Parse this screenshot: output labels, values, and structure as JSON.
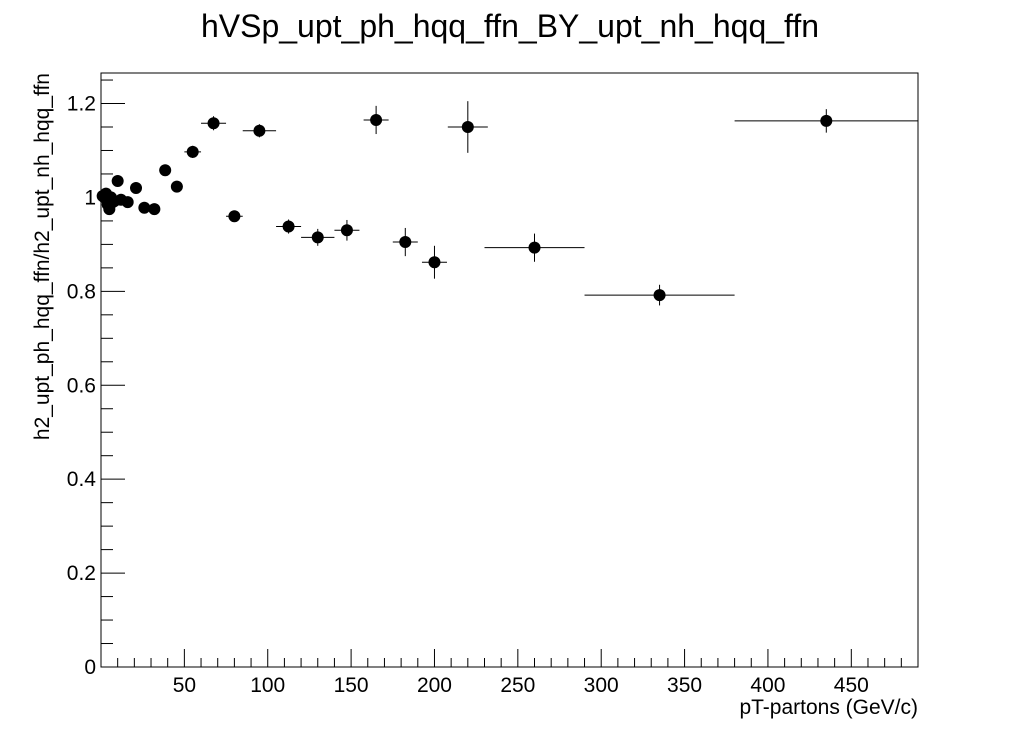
{
  "chart_data": {
    "type": "scatter",
    "title": "hVSp_upt_ph_hqq_ffn_BY_upt_nh_hqq_ffn",
    "xlabel": "pT-partons (GeV/c)",
    "ylabel": "h2_upt_ph_hqq_ffn/h2_upt_nh_hqq_ffn",
    "xlim": [
      0,
      490
    ],
    "ylim": [
      0,
      1.265
    ],
    "x_ticks": [
      50,
      100,
      150,
      200,
      250,
      300,
      350,
      400,
      450
    ],
    "y_ticks": [
      0,
      0.2,
      0.4,
      0.6,
      0.8,
      1,
      1.2
    ],
    "x_tick_labels": [
      "50",
      "100",
      "150",
      "200",
      "250",
      "300",
      "350",
      "400",
      "450"
    ],
    "y_tick_labels": [
      "0",
      "0.2",
      "0.4",
      "0.6",
      "0.8",
      "1",
      "1.2"
    ],
    "grid": false,
    "legend": "none",
    "marker_color": "#000000",
    "points": [
      {
        "x": 1,
        "y": 1.003,
        "xerr": 0.5,
        "yerr": 0.005
      },
      {
        "x": 2,
        "y": 1.0,
        "xerr": 0.5,
        "yerr": 0.005
      },
      {
        "x": 3,
        "y": 1.008,
        "xerr": 0.5,
        "yerr": 0.005
      },
      {
        "x": 4,
        "y": 0.985,
        "xerr": 0.5,
        "yerr": 0.006
      },
      {
        "x": 5,
        "y": 0.975,
        "xerr": 0.5,
        "yerr": 0.006
      },
      {
        "x": 6,
        "y": 1.0,
        "xerr": 0.5,
        "yerr": 0.006
      },
      {
        "x": 7,
        "y": 0.99,
        "xerr": 0.5,
        "yerr": 0.007
      },
      {
        "x": 8,
        "y": 0.992,
        "xerr": 0.5,
        "yerr": 0.007
      },
      {
        "x": 10,
        "y": 1.035,
        "xerr": 1,
        "yerr": 0.008
      },
      {
        "x": 12,
        "y": 0.995,
        "xerr": 1,
        "yerr": 0.008
      },
      {
        "x": 16,
        "y": 0.99,
        "xerr": 2,
        "yerr": 0.009
      },
      {
        "x": 21,
        "y": 1.02,
        "xerr": 2.5,
        "yerr": 0.01
      },
      {
        "x": 26,
        "y": 0.978,
        "xerr": 2.5,
        "yerr": 0.01
      },
      {
        "x": 32,
        "y": 0.975,
        "xerr": 3,
        "yerr": 0.011
      },
      {
        "x": 38.5,
        "y": 1.058,
        "xerr": 3.5,
        "yerr": 0.012
      },
      {
        "x": 45.5,
        "y": 1.023,
        "xerr": 3.5,
        "yerr": 0.012
      },
      {
        "x": 55,
        "y": 1.097,
        "xerr": 5,
        "yerr": 0.013
      },
      {
        "x": 67.5,
        "y": 1.158,
        "xerr": 7.5,
        "yerr": 0.015
      },
      {
        "x": 80,
        "y": 0.96,
        "xerr": 5,
        "yerr": 0.012
      },
      {
        "x": 95,
        "y": 1.142,
        "xerr": 10,
        "yerr": 0.014
      },
      {
        "x": 112.5,
        "y": 0.938,
        "xerr": 7.5,
        "yerr": 0.015
      },
      {
        "x": 130,
        "y": 0.915,
        "xerr": 10,
        "yerr": 0.018
      },
      {
        "x": 147.5,
        "y": 0.93,
        "xerr": 7.5,
        "yerr": 0.022
      },
      {
        "x": 165,
        "y": 1.165,
        "xerr": 7.5,
        "yerr": 0.03
      },
      {
        "x": 182.5,
        "y": 0.905,
        "xerr": 7.5,
        "yerr": 0.03
      },
      {
        "x": 200,
        "y": 0.862,
        "xerr": 7.5,
        "yerr": 0.035
      },
      {
        "x": 220,
        "y": 1.15,
        "xerr": 12,
        "yerr": 0.055
      },
      {
        "x": 260,
        "y": 0.893,
        "xerr": 30,
        "yerr": 0.03
      },
      {
        "x": 335,
        "y": 0.792,
        "xerr": 45,
        "yerr": 0.022
      },
      {
        "x": 435,
        "y": 1.163,
        "xerr": 55,
        "yerr": 0.025
      }
    ]
  }
}
